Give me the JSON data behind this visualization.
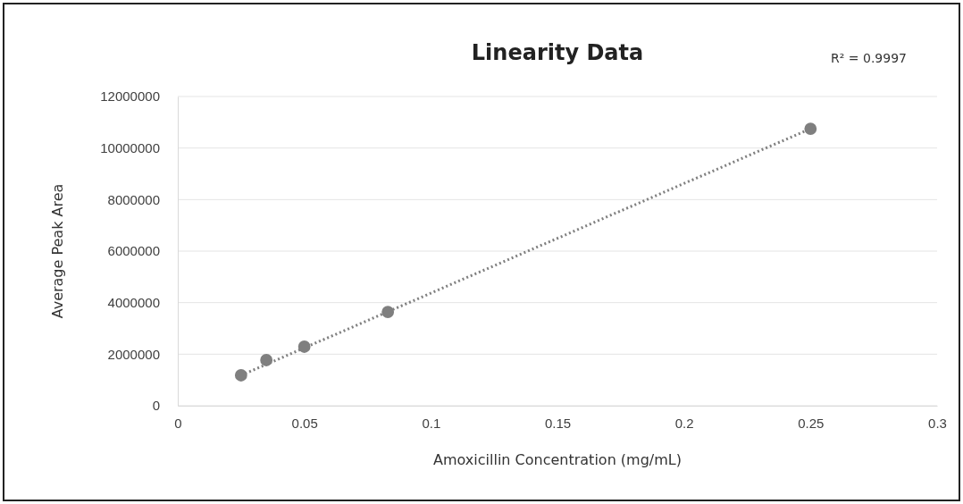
{
  "chart_data": {
    "type": "scatter",
    "title": "Linearity Data",
    "xlabel": "Amoxicillin Concentration (mg/mL)",
    "ylabel": "Average Peak Area",
    "annotations": [
      "R² = 0.9997"
    ],
    "x": [
      0.025,
      0.035,
      0.05,
      0.083,
      0.25
    ],
    "series": [
      {
        "color": "#7f7f7f",
        "marker": "circle",
        "values": [
          1180000,
          1770000,
          2290000,
          3640000,
          10750000
        ]
      },
      {
        "type": "line",
        "color": "#7f7f7f",
        "line_style": "dotted",
        "marker": "none",
        "x": [
          0.025,
          0.25
        ],
        "values": [
          1180000,
          10750000
        ]
      }
    ],
    "xlim": [
      0,
      0.3
    ],
    "xticks": [
      0,
      0.05,
      0.1,
      0.15,
      0.2,
      0.25,
      0.3
    ],
    "ylim": [
      0,
      12000000
    ],
    "yticks": [
      0,
      2000000,
      4000000,
      6000000,
      8000000,
      10000000,
      12000000
    ],
    "grid": "y"
  }
}
